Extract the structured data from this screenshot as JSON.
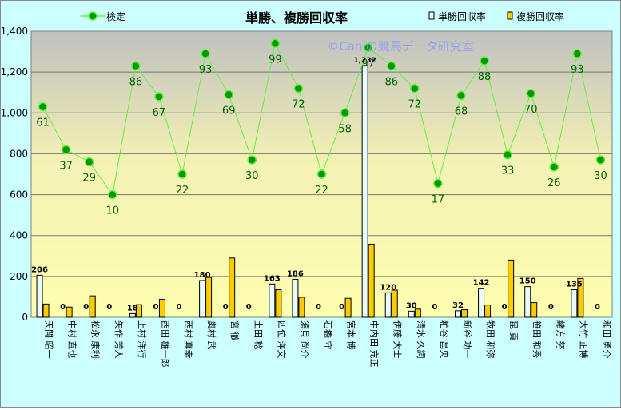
{
  "chart_data": {
    "type": "bar",
    "title": "単勝、複勝回収率",
    "watermark": "©Caniの競馬データ研究室",
    "legend": {
      "line_label": "検定",
      "bar1_label": "単勝回収率",
      "bar2_label": "複勝回収率"
    },
    "ylim": [
      0,
      1400
    ],
    "yticks": [
      "0",
      "200",
      "400",
      "600",
      "800",
      "1,000",
      "1,200",
      "1,400"
    ],
    "categories": [
      "天間 昭一",
      "中村 直也",
      "松永 康利",
      "矢作 芳人",
      "上村 洋行",
      "西田 雄一郎",
      "西村 真幸",
      "奥村 武",
      "宮 徹",
      "土田 稔",
      "四位 洋文",
      "須貝 尚介",
      "石橋 守",
      "宮本 博",
      "中内田 充正",
      "伊藤 大士",
      "清水 久詞",
      "粕谷 昌央",
      "新谷 功一",
      "牧田 和弥",
      "昆 貢",
      "笹田 和秀",
      "緒方 努",
      "大竹 正博",
      "和田 勇介"
    ],
    "series": [
      {
        "name": "単勝回収率",
        "color": "#e8fbff",
        "values": [
          206,
          0,
          0,
          0,
          18,
          0,
          0,
          180,
          0,
          0,
          163,
          186,
          0,
          0,
          1232,
          120,
          30,
          0,
          32,
          142,
          0,
          150,
          0,
          135,
          0
        ]
      },
      {
        "name": "複勝回収率",
        "color": "#ffcc00",
        "values": [
          65,
          50,
          105,
          0,
          62,
          88,
          0,
          195,
          290,
          0,
          135,
          98,
          0,
          93,
          358,
          133,
          40,
          0,
          37,
          60,
          280,
          72,
          0,
          190,
          0
        ]
      }
    ],
    "bar_labels": [
      "206",
      "0",
      "0",
      "0",
      "18",
      "0",
      "0",
      "180",
      "0",
      "0",
      "163",
      "186",
      "0",
      "0",
      "1,232",
      "120",
      "30",
      "0",
      "32",
      "142",
      "0",
      "150",
      "0",
      "135",
      "0"
    ],
    "line": {
      "name": "検定",
      "color": "#66ee44",
      "marker_color": "#009900",
      "y": [
        1030,
        820,
        760,
        600,
        1230,
        1080,
        700,
        1290,
        1090,
        770,
        1340,
        1120,
        700,
        1000,
        1320,
        1230,
        1120,
        655,
        1085,
        1255,
        795,
        1095,
        735,
        1290,
        770
      ],
      "labels": [
        "61",
        "37",
        "29",
        "10",
        "86",
        "67",
        "22",
        "93",
        "69",
        "30",
        "99",
        "72",
        "22",
        "58",
        "97",
        "86",
        "72",
        "17",
        "68",
        "88",
        "33",
        "70",
        "26",
        "93",
        "30"
      ]
    },
    "grid": true
  }
}
